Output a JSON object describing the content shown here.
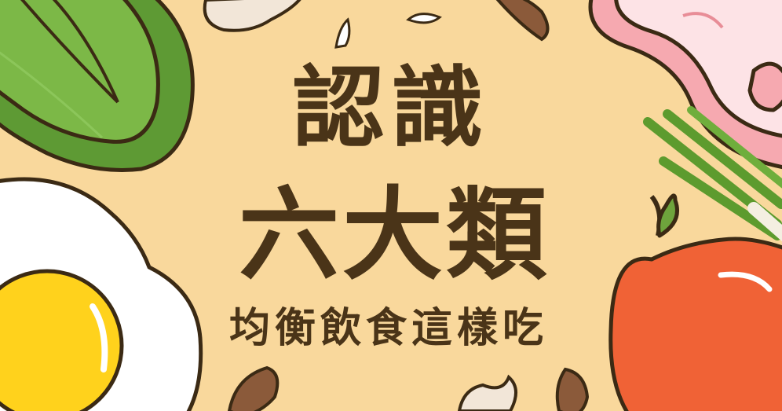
{
  "title": {
    "line1": "認識",
    "line2": "六大類",
    "subtitle": "均衡飲食這樣吃"
  },
  "colors": {
    "background": "#f9d89c",
    "text": "#4a3418",
    "cabbage": "#6ea43c",
    "egg_yolk": "#ffd21c",
    "apple": "#f06236",
    "meat": "#f6a9b0",
    "almond": "#8b5a3a",
    "scallion": "#5d9b2e"
  },
  "illustrations": [
    "cabbage-icon",
    "egg-icon",
    "meat-icon",
    "scallion-icon",
    "apple-icon",
    "almond-icon",
    "cashew-icon",
    "rice-icon"
  ]
}
